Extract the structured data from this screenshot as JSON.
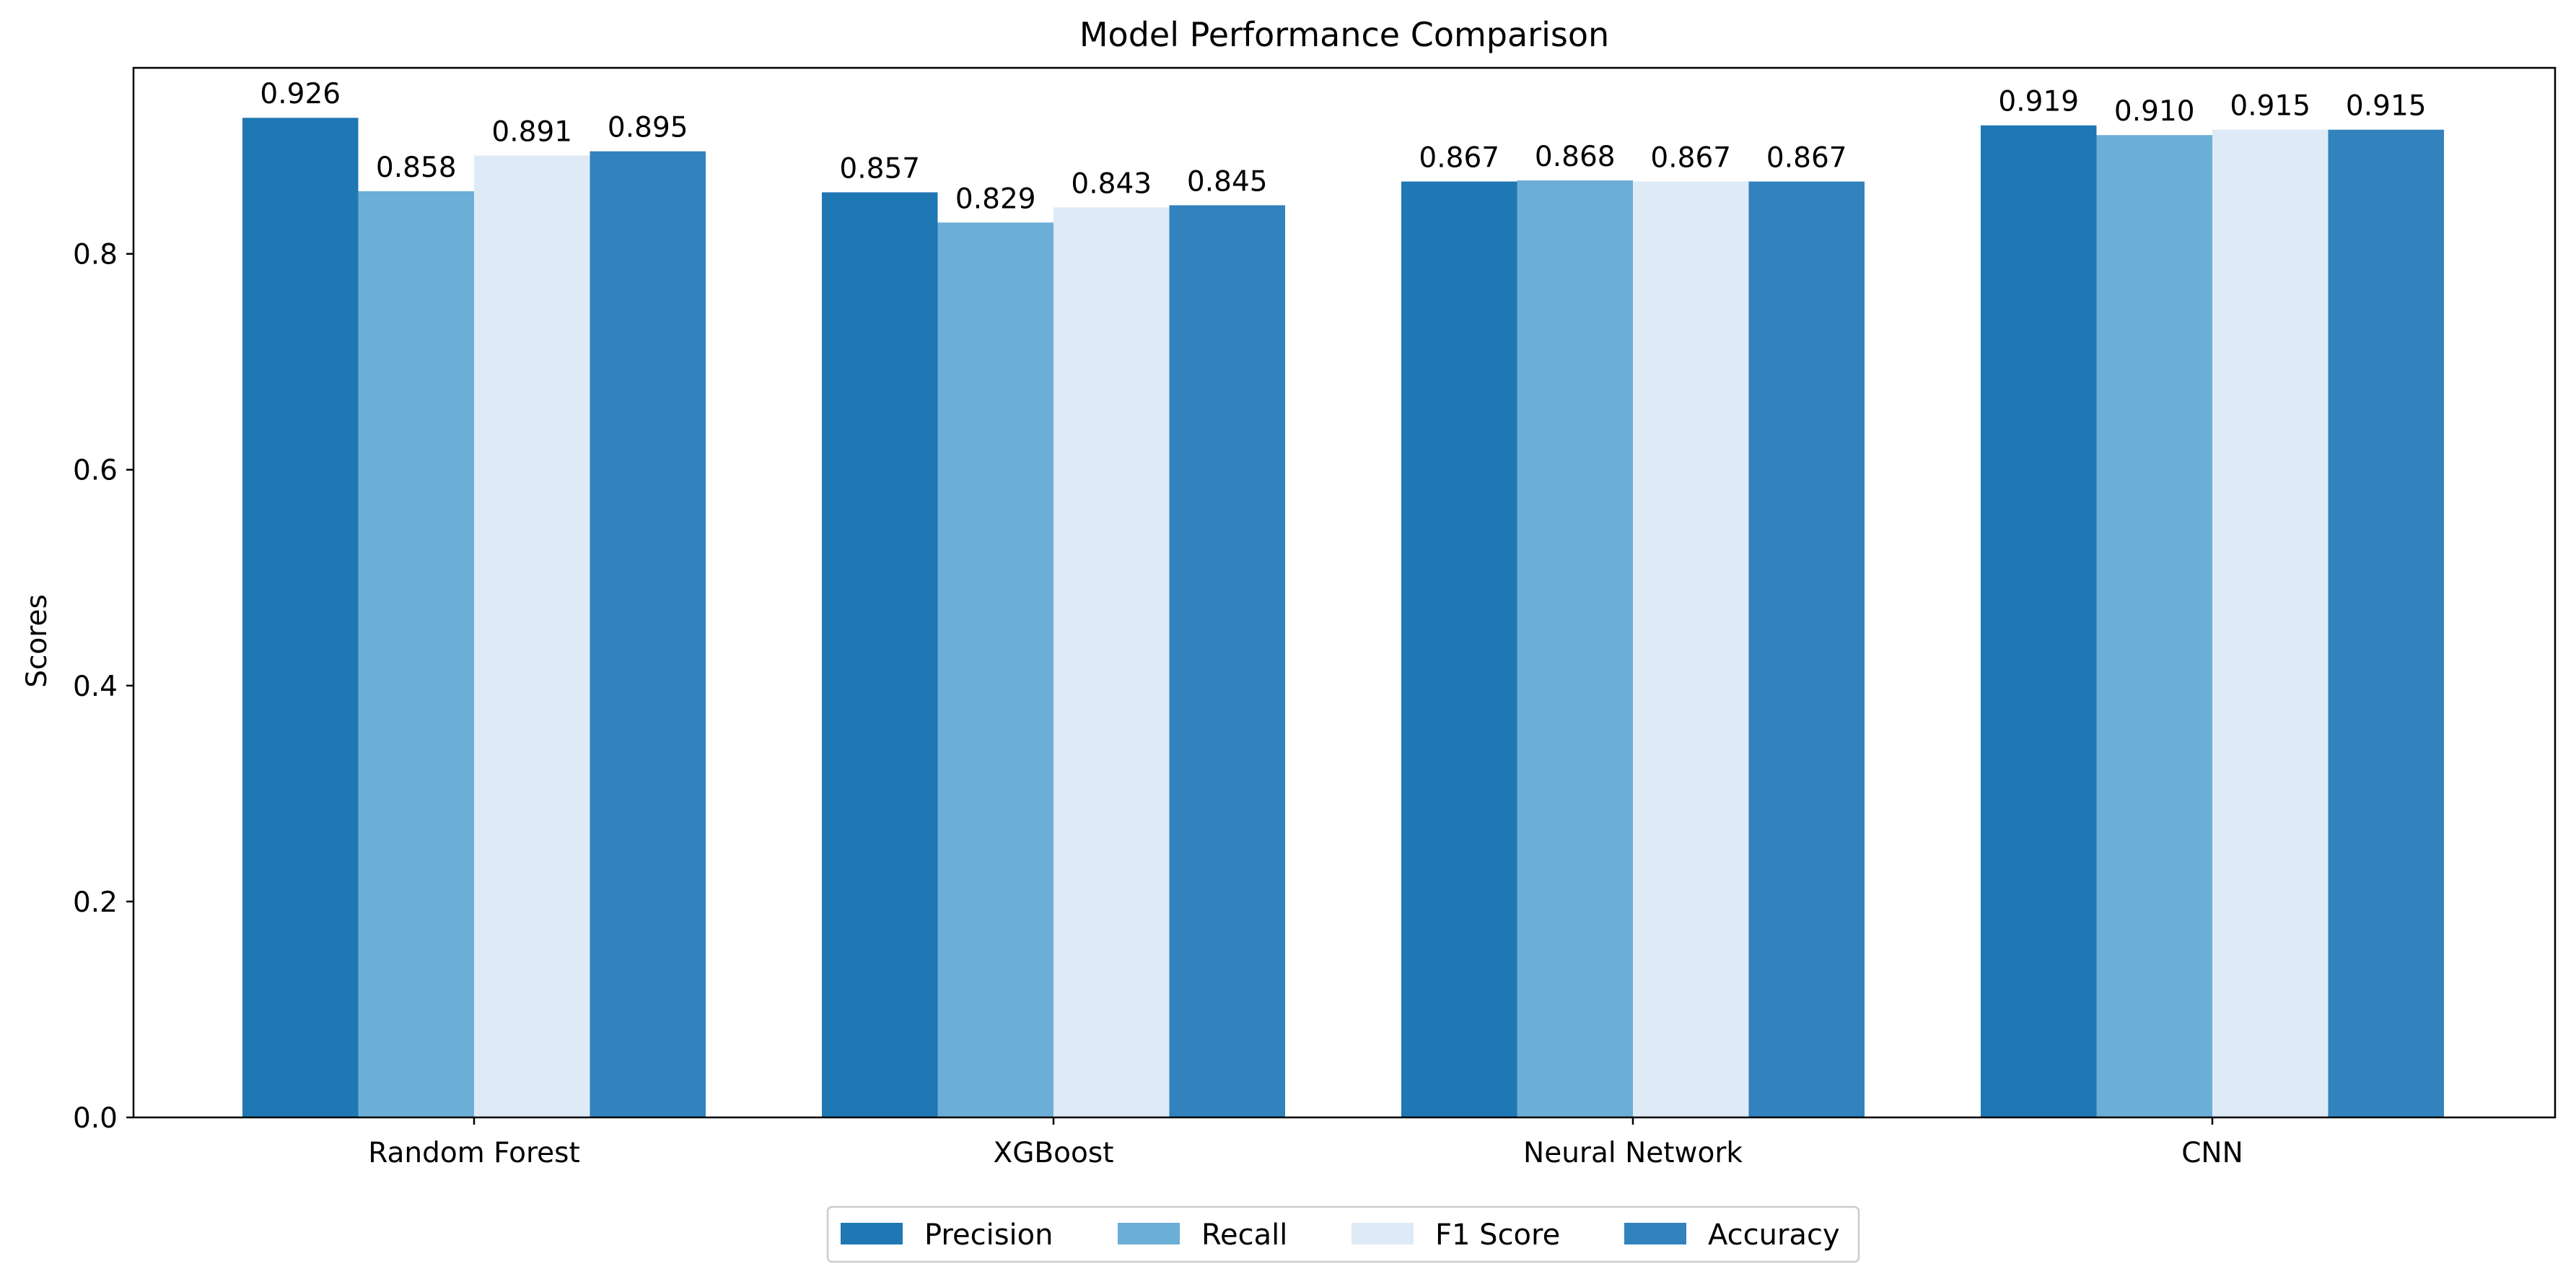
{
  "chart_data": {
    "type": "bar",
    "title": "Model Performance Comparison",
    "xlabel": "",
    "ylabel": "Scores",
    "categories": [
      "Random Forest",
      "XGBoost",
      "Neural Network",
      "CNN"
    ],
    "series": [
      {
        "name": "Precision",
        "color": "#1f77b4",
        "values": [
          0.926,
          0.857,
          0.867,
          0.919
        ],
        "labels": [
          "0.926",
          "0.857",
          "0.867",
          "0.919"
        ]
      },
      {
        "name": "Recall",
        "color": "#6baed6",
        "values": [
          0.858,
          0.829,
          0.868,
          0.91
        ],
        "labels": [
          "0.858",
          "0.829",
          "0.868",
          "0.910"
        ]
      },
      {
        "name": "F1 Score",
        "color": "#deebf7",
        "values": [
          0.891,
          0.843,
          0.867,
          0.915
        ],
        "labels": [
          "0.891",
          "0.843",
          "0.867",
          "0.915"
        ]
      },
      {
        "name": "Accuracy",
        "color": "#3182bd",
        "values": [
          0.895,
          0.845,
          0.867,
          0.915
        ],
        "labels": [
          "0.895",
          "0.845",
          "0.867",
          "0.915"
        ]
      }
    ],
    "ylim": [
      0,
      0.9723
    ],
    "yticks": [
      "0.0",
      "0.2",
      "0.4",
      "0.6",
      "0.8"
    ],
    "grid": false,
    "legend": "bottom-center"
  }
}
